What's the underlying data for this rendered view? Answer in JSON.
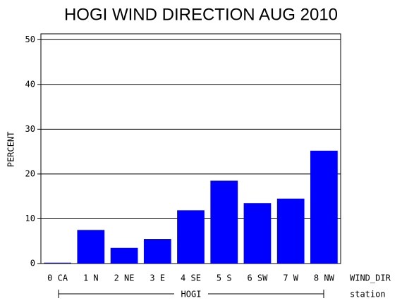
{
  "chart_data": {
    "type": "bar",
    "title": "HOGI WIND DIRECTION AUG 2010",
    "y_label": "PERCENT",
    "x_label": "WIND_DIR",
    "group_label": "HOGI",
    "group_axis_label": "station",
    "categories": [
      "0 CA",
      "1 N",
      "2 NE",
      "3 E",
      "4 SE",
      "5 S",
      "6 SW",
      "7 W",
      "8 NW"
    ],
    "values": [
      0.2,
      7.5,
      3.5,
      5.5,
      11.9,
      18.5,
      13.5,
      14.5,
      25.2
    ],
    "color": "#0000ff",
    "ylim": [
      0,
      51.3
    ],
    "yticks": [
      0,
      10,
      20,
      30,
      40,
      50
    ],
    "grid": true
  }
}
